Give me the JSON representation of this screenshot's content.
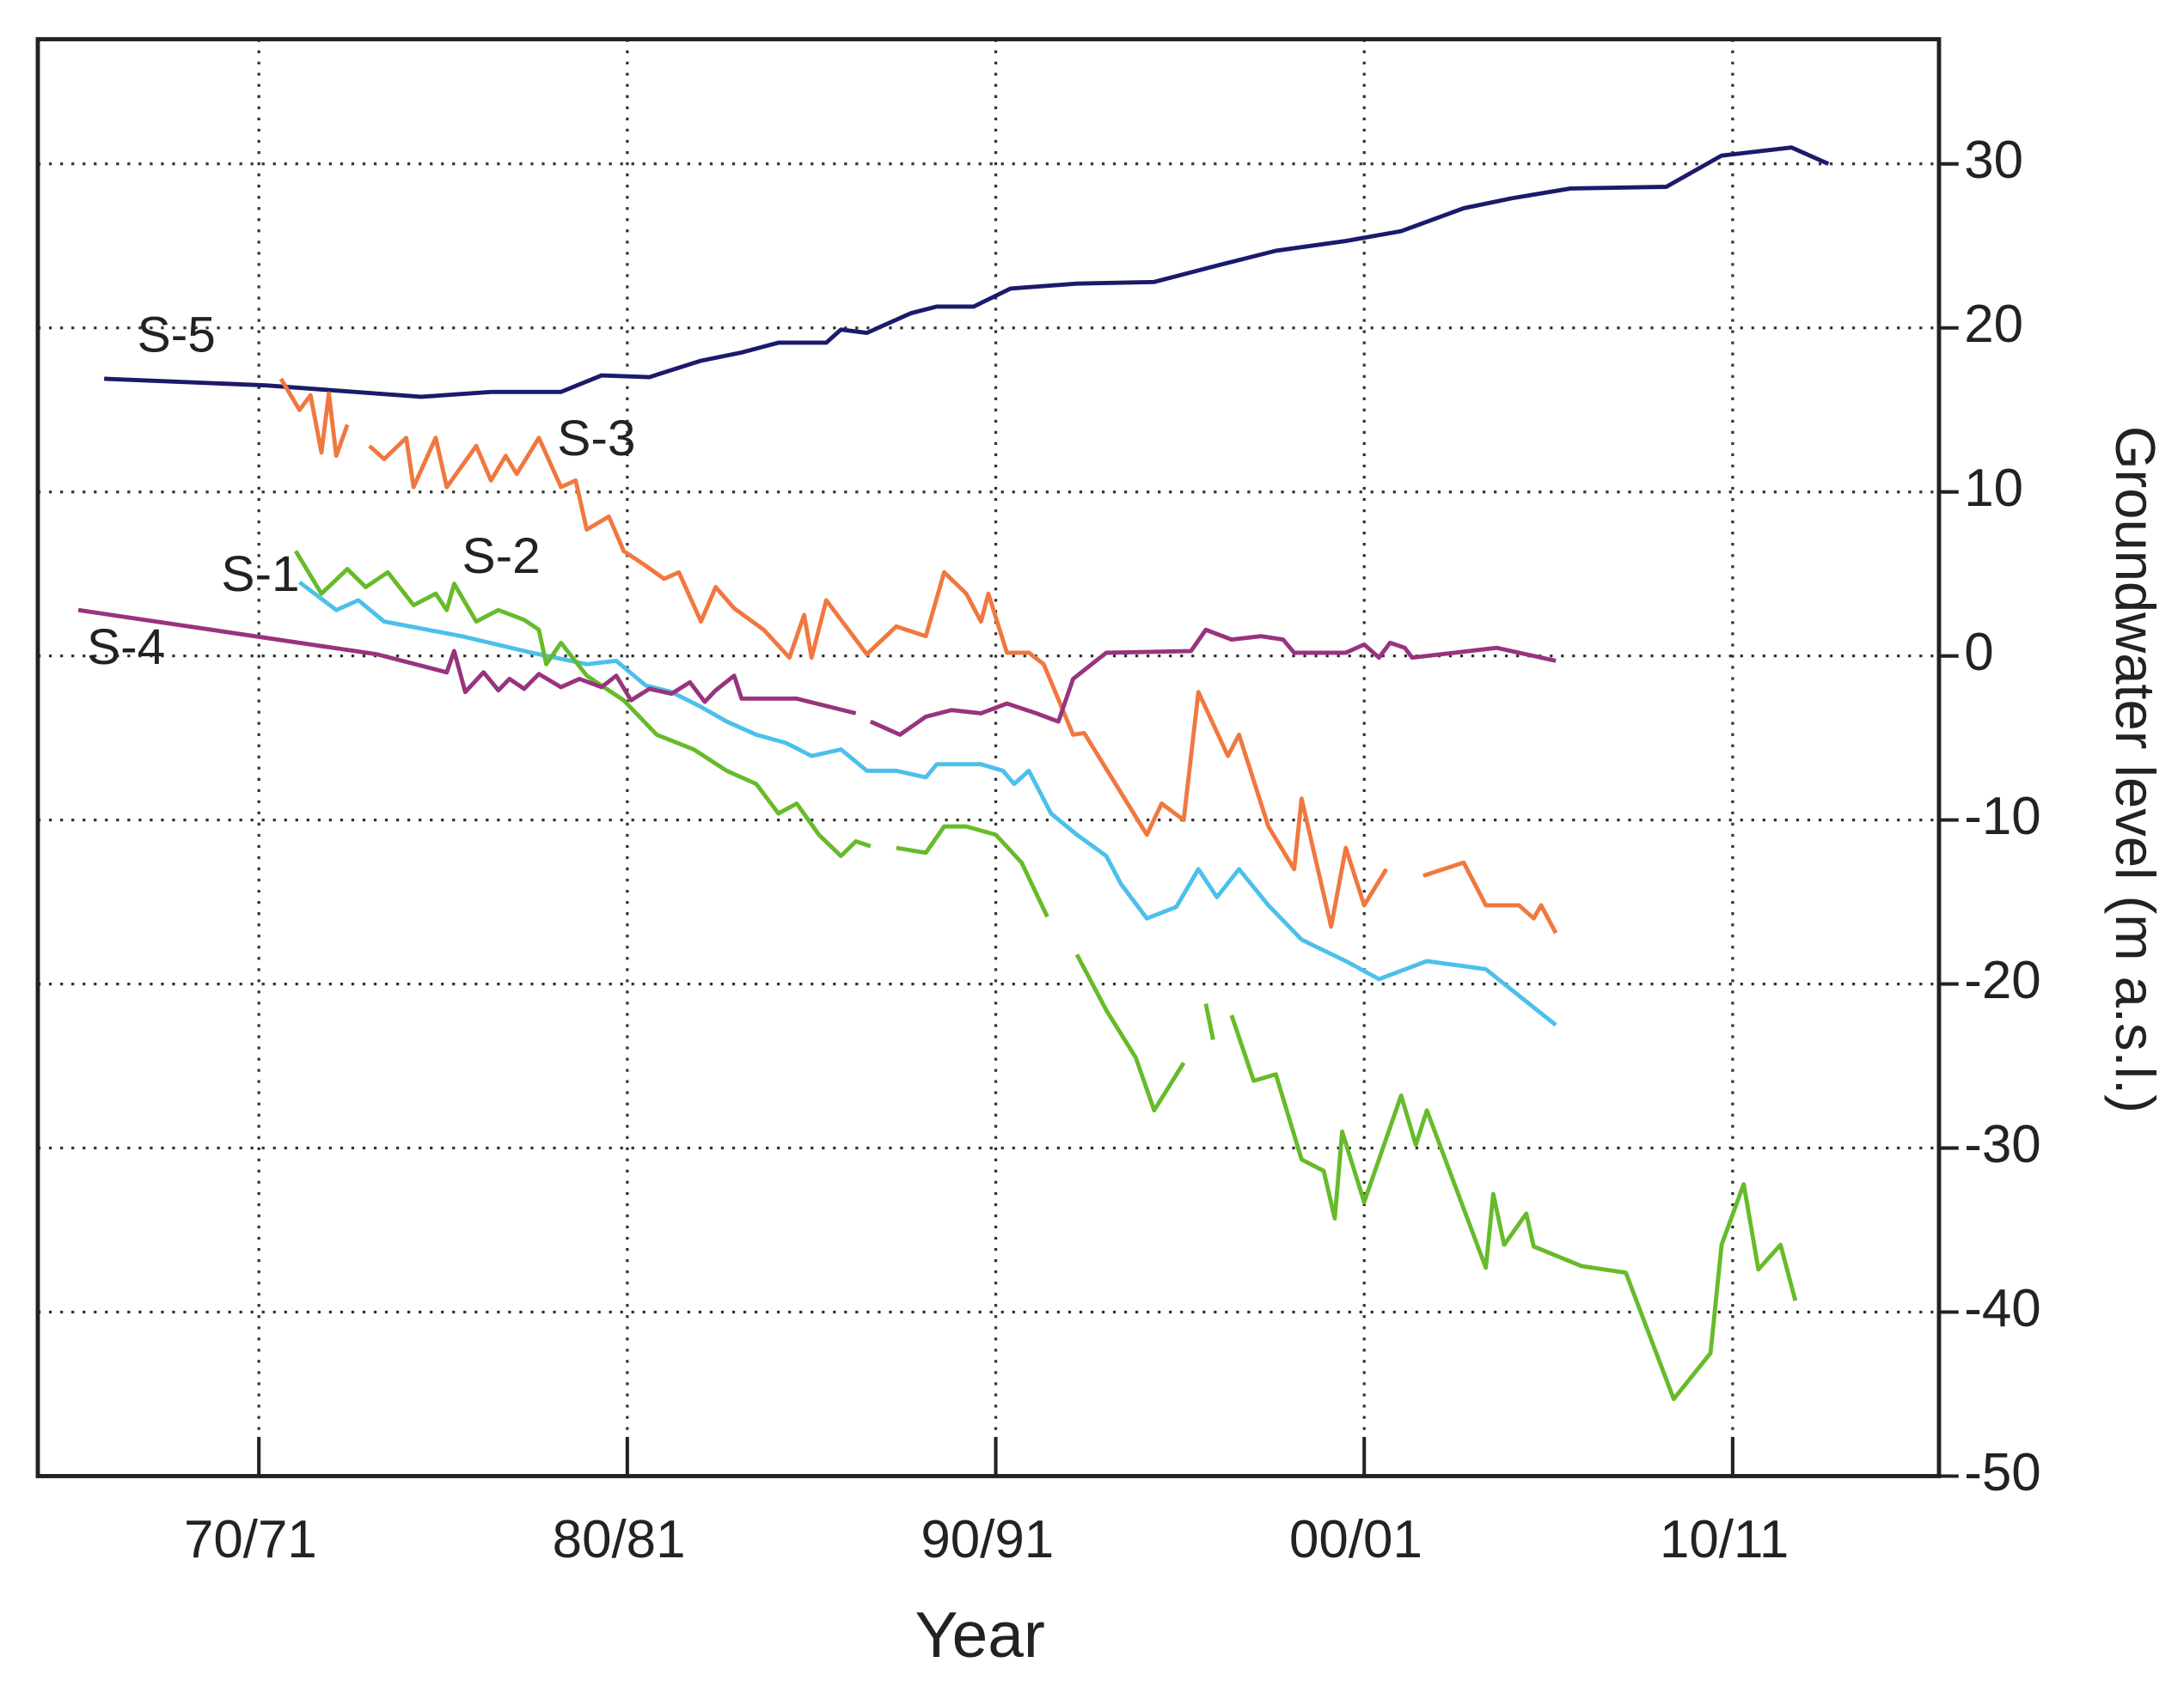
{
  "chart_data": {
    "type": "line",
    "xlabel": "Year",
    "ylabel": "Groundwater level (m a.s.l.)",
    "xlim": [
      1964,
      2015.6
    ],
    "ylim": [
      -50,
      37.6
    ],
    "xticks": [
      {
        "value": 1970,
        "label": "70/71"
      },
      {
        "value": 1980,
        "label": "80/81"
      },
      {
        "value": 1990,
        "label": "90/91"
      },
      {
        "value": 2000,
        "label": "00/01"
      },
      {
        "value": 2010,
        "label": "10/11"
      }
    ],
    "yticks": [
      -50,
      -40,
      -30,
      -20,
      -10,
      0,
      10,
      20,
      30
    ],
    "grid": true,
    "yaxis_side": "right",
    "series": [
      {
        "name": "S-5",
        "color": "#1c1a6b",
        "x": [
          1965.8,
          1970.2,
          1974.4,
          1976.3,
          1978.2,
          1979.3,
          1980.6,
          1982,
          1983.1,
          1984.1,
          1985.4,
          1985.8,
          1986.5,
          1987.7,
          1988.4,
          1989.4,
          1990.4,
          1992.2,
          1994.3,
          1996,
          1997.6,
          1999.5,
          2001,
          2002.7,
          2004,
          2005.6,
          2008.2,
          2009.7,
          2011.6,
          2012.6
        ],
        "values": [
          16.9,
          16.5,
          15.8,
          16.1,
          16.1,
          17.1,
          17,
          18,
          18.5,
          19.1,
          19.1,
          19.9,
          19.7,
          20.9,
          21.3,
          21.3,
          22.4,
          22.7,
          22.8,
          23.8,
          24.7,
          25.3,
          25.9,
          27.3,
          27.9,
          28.5,
          28.6,
          30.5,
          31,
          30
        ]
      },
      {
        "name": "S-3",
        "color": "#f07840",
        "x": [
          1970.6,
          1971.1,
          1971.4,
          1971.7,
          1971.9,
          1972.1,
          1972.4,
          null,
          1973,
          1973.4,
          1974,
          1974.2,
          1974.8,
          1975.1,
          1975.9,
          1976.3,
          1976.7,
          1977,
          1977.6,
          1978.2,
          1978.6,
          1978.9,
          1979.5,
          1979.9,
          1980.5,
          1981,
          1981.4,
          1982,
          1982.4,
          1982.9,
          1983.7,
          1984.4,
          1984.8,
          1985,
          1985.4,
          1986.5,
          1987.3,
          1988.1,
          1988.6,
          1989.2,
          1989.6,
          1989.8,
          1990.3,
          1990.9,
          1991.3,
          1992.1,
          1992.4,
          1994.1,
          1994.5,
          1995.1,
          1995.5,
          1996.3,
          1996.6,
          1997.4,
          1998.1,
          1998.3,
          1999.1,
          1999.5,
          2000,
          2000.6,
          null,
          2001.6,
          2002.7,
          2003.3,
          2004.2,
          2004.6,
          2004.8,
          2005.2
        ],
        "values": [
          16.9,
          15.0,
          15.9,
          12.4,
          16.0,
          12.2,
          14.1,
          null,
          12.8,
          12.0,
          13.3,
          10.3,
          13.3,
          10.3,
          12.8,
          10.7,
          12.2,
          11.1,
          13.3,
          10.3,
          10.7,
          7.7,
          8.5,
          6.4,
          5.5,
          4.7,
          5.1,
          2.1,
          4.2,
          2.9,
          1.6,
          -0.1,
          2.5,
          -0.1,
          3.4,
          0.1,
          1.8,
          1.2,
          5.1,
          3.8,
          2.1,
          3.8,
          0.2,
          0.2,
          -0.5,
          -4.8,
          -4.7,
          -10.9,
          -9.0,
          -10.0,
          -2.2,
          -6.1,
          -4.8,
          -10.4,
          -13.0,
          -8.7,
          -16.5,
          -11.7,
          -15.2,
          -13.0,
          null,
          -13.4,
          -12.6,
          -15.2,
          -15.2,
          -16.0,
          -15.2,
          -16.9
        ]
      },
      {
        "name": "S-1",
        "color": "#4cc0ea",
        "x": [
          1971.1,
          1972.1,
          1972.7,
          1973.4,
          1975.5,
          1977.4,
          1978.9,
          1979.7,
          1980.5,
          1981.2,
          1982,
          1982.7,
          1983.5,
          1984.3,
          1985,
          1985.8,
          1986.5,
          1987.3,
          1988.1,
          1988.4,
          1989.6,
          1990.2,
          1990.5,
          1990.9,
          1991.5,
          1992.2,
          1993,
          1993.4,
          1994.1,
          1994.9,
          1995.5,
          1996,
          1996.6,
          1997.4,
          1998.3,
          1999.5,
          2000.4,
          2001.7,
          2003.3,
          2005.2
        ],
        "values": [
          4.5,
          2.8,
          3.4,
          2.1,
          1.2,
          0.2,
          -0.5,
          -0.3,
          -1.8,
          -2.2,
          -3.1,
          -4.0,
          -4.8,
          -5.3,
          -6.1,
          -5.7,
          -7.0,
          -7.0,
          -7.4,
          -6.6,
          -6.6,
          -7.0,
          -7.8,
          -7.0,
          -9.6,
          -10.9,
          -12.2,
          -13.9,
          -16.0,
          -15.3,
          -13.0,
          -14.7,
          -13.0,
          -15.2,
          -17.3,
          -18.6,
          -19.7,
          -18.6,
          -19.1,
          -22.5
        ]
      },
      {
        "name": "S-2",
        "color": "#66bb2a",
        "x": [
          1971.0,
          1971.7,
          1972.4,
          1972.9,
          1973.5,
          1974.2,
          1974.8,
          1975.1,
          1975.3,
          1975.9,
          1976.5,
          1977.2,
          1977.6,
          1977.8,
          1978.2,
          1978.9,
          1979.9,
          1980.8,
          1981.8,
          1982.7,
          1983.5,
          1984.1,
          1984.6,
          1985.2,
          1985.8,
          1986.2,
          1986.6,
          null,
          1987.3,
          1988.1,
          1988.6,
          1989.2,
          1990,
          1990.7,
          1991.4,
          null,
          1992.2,
          1993,
          1993.8,
          1994.3,
          1995.1,
          null,
          1995.7,
          1995.9,
          null,
          1996.4,
          1997,
          1997.6,
          1998.3,
          1998.9,
          1999.2,
          1999.4,
          2000,
          2001,
          2001.4,
          2001.7,
          2003.3,
          2003.5,
          2003.8,
          2004.4,
          2004.6,
          2005.9,
          2007.1,
          2008.4,
          2009.4,
          2009.7,
          2010.3,
          2010.7,
          2011.3,
          2011.7
        ],
        "values": [
          6.4,
          3.8,
          5.3,
          4.2,
          5.1,
          3.1,
          3.8,
          2.8,
          4.4,
          2.1,
          2.8,
          2.2,
          1.6,
          -0.5,
          0.8,
          -1.2,
          -2.7,
          -4.8,
          -5.7,
          -7.0,
          -7.8,
          -9.6,
          -9.0,
          -10.9,
          -12.2,
          -11.3,
          -11.6,
          null,
          -11.7,
          -12.0,
          -10.4,
          -10.4,
          -10.9,
          -12.6,
          -15.9,
          null,
          -18.2,
          -21.6,
          -24.5,
          -27.7,
          -24.8,
          null,
          -21.2,
          -23.4,
          null,
          -21.9,
          -25.9,
          -25.5,
          -30.7,
          -31.4,
          -34.3,
          -29.0,
          -33.3,
          -26.8,
          -29.8,
          -27.7,
          -37.3,
          -32.8,
          -35.9,
          -34.0,
          -36.0,
          -37.2,
          -37.6,
          -45.3,
          -42.5,
          -35.9,
          -32.2,
          -37.4,
          -35.9,
          -39.3
        ]
      },
      {
        "name": "S-4",
        "color": "#98337f",
        "x": [
          1965.1,
          1973.2,
          1975.1,
          1975.3,
          1975.6,
          1976.1,
          1976.5,
          1976.8,
          1977.2,
          1977.6,
          1978.2,
          1978.7,
          1979.3,
          1979.7,
          1980.1,
          1980.6,
          1981.2,
          1981.7,
          1982.1,
          1982.4,
          1982.9,
          1983.1,
          1984.6,
          1986.2,
          null,
          1986.6,
          1987.4,
          1988.1,
          1988.8,
          1989.6,
          1990.3,
          1991.1,
          1991.7,
          1992.1,
          1993.0,
          1995.3,
          1995.7,
          1996.4,
          1997.2,
          1997.8,
          1998.1,
          1999.5,
          2000.0,
          2000.4,
          2000.7,
          2001.1,
          2001.3,
          2003.6,
          2005.2
        ],
        "values": [
          2.8,
          0.1,
          -1.0,
          0.3,
          -2.2,
          -1.0,
          -2.1,
          -1.4,
          -2.0,
          -1.1,
          -1.9,
          -1.4,
          -1.9,
          -1.2,
          -2.7,
          -2.0,
          -2.3,
          -1.6,
          -2.8,
          -2.1,
          -1.2,
          -2.6,
          -2.6,
          -3.5,
          null,
          -4.0,
          -4.8,
          -3.7,
          -3.3,
          -3.5,
          -2.9,
          -3.5,
          -4.0,
          -1.4,
          0.2,
          0.3,
          1.6,
          1.0,
          1.2,
          1.0,
          0.2,
          0.2,
          0.7,
          -0.1,
          0.8,
          0.5,
          -0.1,
          0.5,
          -0.3
        ]
      }
    ]
  }
}
